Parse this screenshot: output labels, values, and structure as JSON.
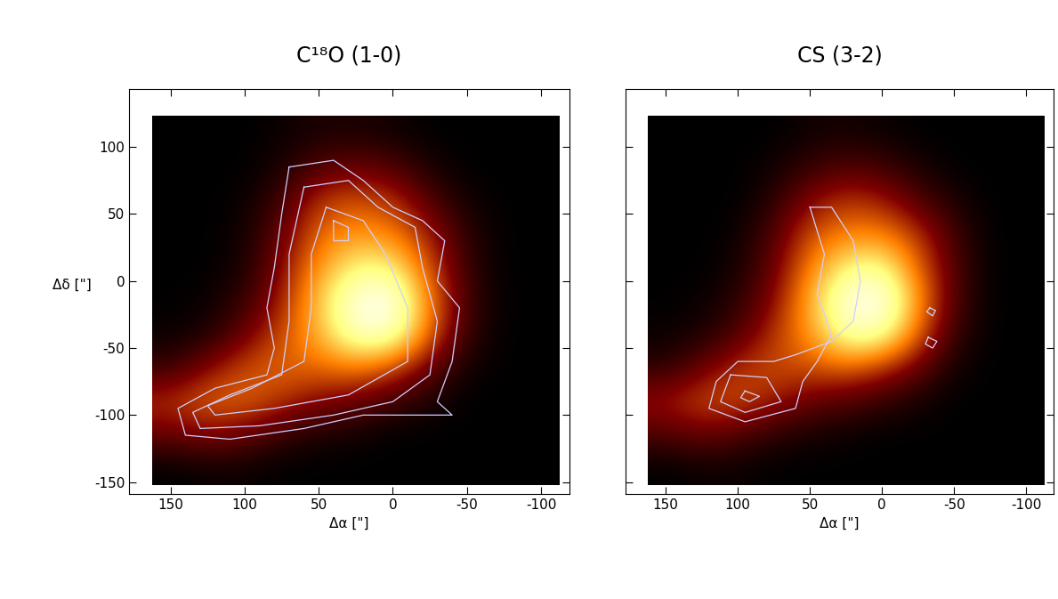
{
  "chart_data": [
    {
      "type": "heatmap",
      "title": "C¹⁸O (1-0)",
      "x_label": "Δα [\"]",
      "y_label": "Δδ [\"]",
      "xlim": [
        178,
        -119
      ],
      "ylim": [
        -159,
        143
      ],
      "xticks": [
        150,
        100,
        50,
        0,
        -50,
        -100
      ],
      "yticks": [
        100,
        50,
        0,
        -50,
        -100,
        -150
      ],
      "x": [
        150,
        125,
        100,
        75,
        50,
        25,
        0,
        -25,
        -50,
        -75,
        -100
      ],
      "y": [
        110,
        85,
        60,
        35,
        10,
        -15,
        -40,
        -65,
        -90,
        -115,
        -140
      ],
      "cells": [
        [
          0,
          0,
          0,
          0.02,
          0.05,
          0.05,
          0.03,
          0,
          0,
          0,
          0
        ],
        [
          0,
          0,
          0,
          0.05,
          0.15,
          0.2,
          0.15,
          0.05,
          0,
          0,
          0
        ],
        [
          0,
          0,
          0.02,
          0.12,
          0.35,
          0.4,
          0.35,
          0.15,
          0.03,
          0,
          0
        ],
        [
          0,
          0,
          0.03,
          0.2,
          0.45,
          0.55,
          0.5,
          0.3,
          0.08,
          0,
          0
        ],
        [
          0,
          0,
          0.05,
          0.25,
          0.55,
          0.75,
          0.75,
          0.4,
          0.1,
          0,
          0
        ],
        [
          0,
          0.02,
          0.1,
          0.3,
          0.65,
          0.95,
          1.0,
          0.5,
          0.12,
          0,
          0
        ],
        [
          0.02,
          0.05,
          0.2,
          0.4,
          0.6,
          0.9,
          0.9,
          0.45,
          0.1,
          0,
          0
        ],
        [
          0.1,
          0.25,
          0.4,
          0.45,
          0.45,
          0.5,
          0.4,
          0.2,
          0.03,
          0,
          0
        ],
        [
          0.35,
          0.45,
          0.45,
          0.35,
          0.25,
          0.2,
          0.12,
          0.05,
          0,
          0,
          0
        ],
        [
          0.2,
          0.25,
          0.2,
          0.1,
          0.05,
          0.03,
          0,
          0,
          0,
          0,
          0
        ],
        [
          0,
          0.02,
          0.02,
          0,
          0,
          0,
          0,
          0,
          0,
          0,
          0
        ]
      ],
      "color": "#d0d0ff",
      "contours": [
        [
          [
            70,
            85
          ],
          [
            40,
            90
          ],
          [
            20,
            75
          ],
          [
            0,
            55
          ],
          [
            -20,
            45
          ],
          [
            -35,
            30
          ],
          [
            -30,
            0
          ],
          [
            -45,
            -20
          ],
          [
            -40,
            -60
          ],
          [
            -30,
            -90
          ],
          [
            -40,
            -100
          ],
          [
            20,
            -100
          ],
          [
            60,
            -110
          ],
          [
            110,
            -118
          ],
          [
            140,
            -115
          ],
          [
            145,
            -95
          ],
          [
            120,
            -80
          ],
          [
            85,
            -70
          ],
          [
            80,
            -50
          ],
          [
            85,
            -20
          ],
          [
            80,
            10
          ],
          [
            75,
            50
          ],
          [
            70,
            85
          ]
        ],
        [
          [
            60,
            70
          ],
          [
            30,
            75
          ],
          [
            10,
            55
          ],
          [
            -15,
            40
          ],
          [
            -20,
            10
          ],
          [
            -30,
            -30
          ],
          [
            -25,
            -70
          ],
          [
            0,
            -90
          ],
          [
            40,
            -100
          ],
          [
            90,
            -108
          ],
          [
            130,
            -110
          ],
          [
            135,
            -98
          ],
          [
            110,
            -85
          ],
          [
            75,
            -70
          ],
          [
            70,
            -30
          ],
          [
            70,
            20
          ],
          [
            60,
            70
          ]
        ],
        [
          [
            45,
            55
          ],
          [
            20,
            45
          ],
          [
            5,
            20
          ],
          [
            -10,
            -20
          ],
          [
            -10,
            -60
          ],
          [
            30,
            -85
          ],
          [
            80,
            -95
          ],
          [
            120,
            -100
          ],
          [
            125,
            -93
          ],
          [
            95,
            -80
          ],
          [
            60,
            -60
          ],
          [
            55,
            -20
          ],
          [
            55,
            20
          ],
          [
            45,
            55
          ]
        ],
        [
          [
            40,
            45
          ],
          [
            30,
            40
          ],
          [
            30,
            30
          ],
          [
            40,
            30
          ],
          [
            40,
            45
          ]
        ]
      ]
    },
    {
      "type": "heatmap",
      "title": "CS (3-2)",
      "x_label": "Δα [\"]",
      "xlim": [
        178,
        -119
      ],
      "ylim": [
        -159,
        143
      ],
      "xticks": [
        150,
        100,
        50,
        0,
        -50,
        -100
      ],
      "yticks": [
        100,
        50,
        0,
        -50,
        -100,
        -150
      ],
      "tick_labels": "x",
      "x": [
        150,
        125,
        100,
        75,
        50,
        25,
        0,
        -25,
        -50,
        -75,
        -100
      ],
      "y": [
        110,
        85,
        60,
        35,
        10,
        -15,
        -40,
        -65,
        -90,
        -115,
        -140
      ],
      "cells": [
        [
          0,
          0,
          0,
          0,
          0.03,
          0.04,
          0.02,
          0,
          0,
          0,
          0
        ],
        [
          0,
          0,
          0,
          0.03,
          0.1,
          0.15,
          0.12,
          0.05,
          0,
          0,
          0
        ],
        [
          0,
          0,
          0,
          0.08,
          0.25,
          0.35,
          0.3,
          0.15,
          0.05,
          0,
          0
        ],
        [
          0,
          0,
          0.02,
          0.15,
          0.4,
          0.5,
          0.5,
          0.35,
          0.12,
          0,
          0
        ],
        [
          0,
          0,
          0.04,
          0.2,
          0.5,
          0.75,
          0.8,
          0.45,
          0.15,
          0,
          0
        ],
        [
          0,
          0.02,
          0.08,
          0.25,
          0.6,
          0.95,
          1.0,
          0.55,
          0.15,
          0,
          0
        ],
        [
          0.02,
          0.05,
          0.15,
          0.35,
          0.55,
          0.85,
          0.85,
          0.45,
          0.1,
          0,
          0
        ],
        [
          0.08,
          0.2,
          0.35,
          0.4,
          0.4,
          0.45,
          0.35,
          0.2,
          0.03,
          0,
          0
        ],
        [
          0.3,
          0.4,
          0.4,
          0.3,
          0.2,
          0.15,
          0.1,
          0.04,
          0,
          0,
          0
        ],
        [
          0.15,
          0.2,
          0.15,
          0.08,
          0.04,
          0.02,
          0,
          0,
          0,
          0,
          0
        ],
        [
          0,
          0.02,
          0.02,
          0,
          0,
          0,
          0,
          0,
          0,
          0,
          0
        ]
      ],
      "color": "#d0d0ff",
      "contours": [
        [
          [
            50,
            55
          ],
          [
            35,
            55
          ],
          [
            20,
            30
          ],
          [
            15,
            0
          ],
          [
            20,
            -30
          ],
          [
            35,
            -45
          ],
          [
            60,
            -55
          ],
          [
            75,
            -60
          ],
          [
            100,
            -60
          ],
          [
            115,
            -75
          ],
          [
            120,
            -95
          ],
          [
            95,
            -105
          ],
          [
            60,
            -95
          ],
          [
            55,
            -75
          ],
          [
            45,
            -60
          ],
          [
            35,
            -40
          ],
          [
            45,
            -10
          ],
          [
            40,
            20
          ],
          [
            50,
            55
          ]
        ],
        [
          [
            105,
            -70
          ],
          [
            80,
            -72
          ],
          [
            70,
            -90
          ],
          [
            95,
            -98
          ],
          [
            112,
            -90
          ],
          [
            105,
            -70
          ]
        ],
        [
          [
            95,
            -82
          ],
          [
            85,
            -86
          ],
          [
            92,
            -90
          ],
          [
            98,
            -87
          ],
          [
            95,
            -82
          ]
        ],
        [
          [
            -33,
            -20
          ],
          [
            -37,
            -22
          ],
          [
            -35,
            -26
          ],
          [
            -31,
            -23
          ],
          [
            -33,
            -20
          ]
        ],
        [
          [
            -32,
            -42
          ],
          [
            -38,
            -45
          ],
          [
            -35,
            -50
          ],
          [
            -30,
            -47
          ],
          [
            -32,
            -42
          ]
        ]
      ]
    }
  ]
}
